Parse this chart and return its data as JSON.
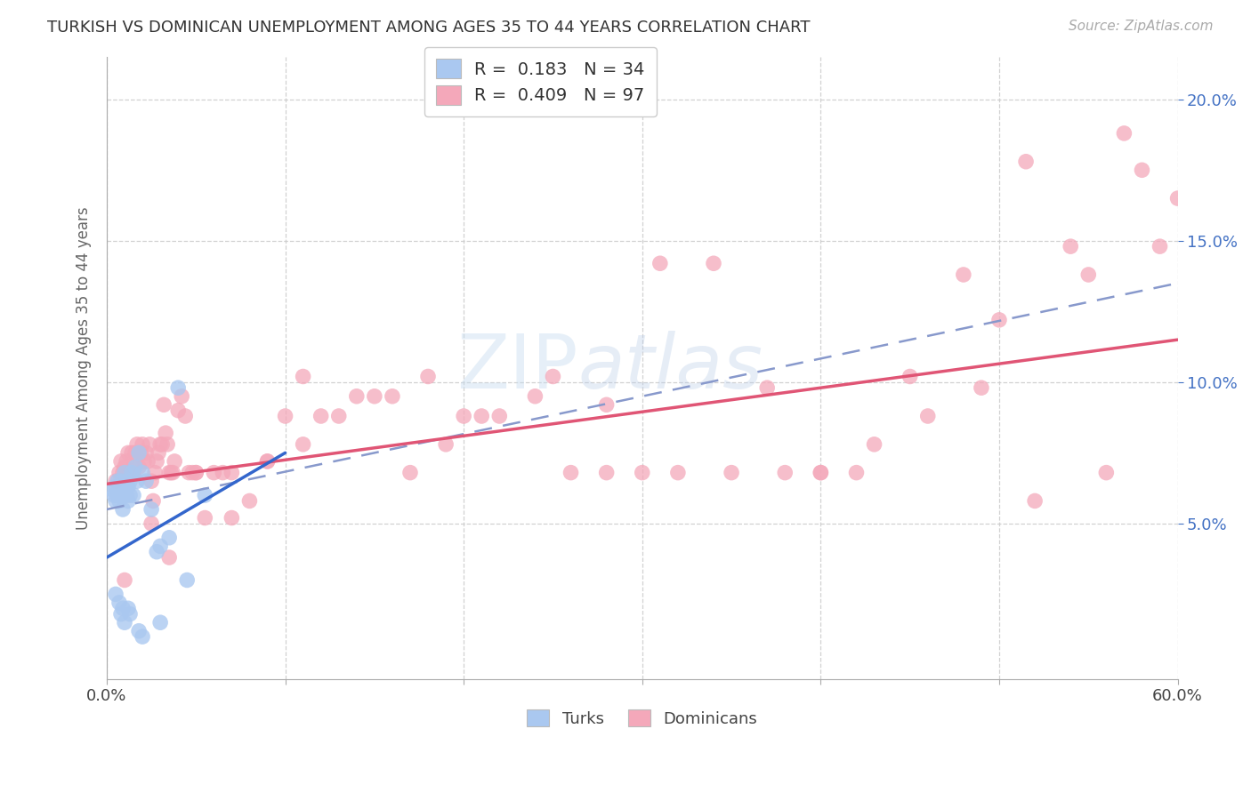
{
  "title": "TURKISH VS DOMINICAN UNEMPLOYMENT AMONG AGES 35 TO 44 YEARS CORRELATION CHART",
  "source": "Source: ZipAtlas.com",
  "ylabel": "Unemployment Among Ages 35 to 44 years",
  "xlim": [
    0.0,
    0.6
  ],
  "ylim": [
    -0.005,
    0.215
  ],
  "turks_R": "0.183",
  "turks_N": "34",
  "dominicans_R": "0.409",
  "dominicans_N": "97",
  "turks_color": "#aac8f0",
  "dominicans_color": "#f4a8ba",
  "turks_line_color": "#3366cc",
  "dominicans_line_color": "#e05575",
  "dashed_line_color": "#8899cc",
  "background_color": "#ffffff",
  "ytick_vals": [
    0.05,
    0.1,
    0.15,
    0.2
  ],
  "ytick_labels": [
    "5.0%",
    "10.0%",
    "15.0%",
    "20.0%"
  ],
  "turks_x": [
    0.003,
    0.004,
    0.005,
    0.005,
    0.006,
    0.006,
    0.007,
    0.007,
    0.008,
    0.008,
    0.009,
    0.009,
    0.01,
    0.01,
    0.01,
    0.011,
    0.011,
    0.012,
    0.012,
    0.013,
    0.013,
    0.014,
    0.015,
    0.016,
    0.017,
    0.018,
    0.02,
    0.022,
    0.025,
    0.028,
    0.03,
    0.035,
    0.04,
    0.055
  ],
  "turks_y": [
    0.062,
    0.06,
    0.058,
    0.063,
    0.06,
    0.065,
    0.058,
    0.062,
    0.06,
    0.065,
    0.055,
    0.063,
    0.06,
    0.062,
    0.068,
    0.06,
    0.065,
    0.058,
    0.063,
    0.06,
    0.065,
    0.068,
    0.06,
    0.07,
    0.065,
    0.075,
    0.068,
    0.065,
    0.055,
    0.04,
    0.042,
    0.045,
    0.098,
    0.06
  ],
  "turks_low_y": [
    0.025,
    0.022,
    0.018,
    0.02,
    0.015,
    0.02,
    0.018,
    0.012,
    0.01,
    0.015,
    0.03
  ],
  "turks_low_x": [
    0.005,
    0.007,
    0.008,
    0.009,
    0.01,
    0.012,
    0.013,
    0.018,
    0.02,
    0.03,
    0.045
  ],
  "dom_x": [
    0.005,
    0.007,
    0.008,
    0.009,
    0.01,
    0.011,
    0.012,
    0.013,
    0.014,
    0.015,
    0.016,
    0.017,
    0.018,
    0.019,
    0.02,
    0.021,
    0.022,
    0.023,
    0.024,
    0.025,
    0.026,
    0.027,
    0.028,
    0.029,
    0.03,
    0.031,
    0.032,
    0.033,
    0.034,
    0.035,
    0.036,
    0.037,
    0.038,
    0.04,
    0.042,
    0.044,
    0.046,
    0.048,
    0.05,
    0.055,
    0.06,
    0.065,
    0.07,
    0.08,
    0.09,
    0.1,
    0.11,
    0.12,
    0.14,
    0.16,
    0.18,
    0.2,
    0.22,
    0.25,
    0.28,
    0.3,
    0.32,
    0.35,
    0.38,
    0.4,
    0.42,
    0.45,
    0.48,
    0.5,
    0.52,
    0.55,
    0.57,
    0.59,
    0.6,
    0.58,
    0.56,
    0.54,
    0.515,
    0.49,
    0.46,
    0.43,
    0.4,
    0.37,
    0.34,
    0.31,
    0.28,
    0.26,
    0.24,
    0.21,
    0.19,
    0.17,
    0.15,
    0.13,
    0.11,
    0.09,
    0.07,
    0.05,
    0.035,
    0.025,
    0.015,
    0.012,
    0.01
  ],
  "dom_y": [
    0.065,
    0.068,
    0.072,
    0.068,
    0.07,
    0.072,
    0.075,
    0.068,
    0.075,
    0.07,
    0.075,
    0.078,
    0.07,
    0.075,
    0.078,
    0.072,
    0.075,
    0.072,
    0.078,
    0.065,
    0.058,
    0.068,
    0.072,
    0.075,
    0.078,
    0.078,
    0.092,
    0.082,
    0.078,
    0.068,
    0.068,
    0.068,
    0.072,
    0.09,
    0.095,
    0.088,
    0.068,
    0.068,
    0.068,
    0.052,
    0.068,
    0.068,
    0.052,
    0.058,
    0.072,
    0.088,
    0.102,
    0.088,
    0.095,
    0.095,
    0.102,
    0.088,
    0.088,
    0.102,
    0.068,
    0.068,
    0.068,
    0.068,
    0.068,
    0.068,
    0.068,
    0.102,
    0.138,
    0.122,
    0.058,
    0.138,
    0.188,
    0.148,
    0.165,
    0.175,
    0.068,
    0.148,
    0.178,
    0.098,
    0.088,
    0.078,
    0.068,
    0.098,
    0.142,
    0.142,
    0.092,
    0.068,
    0.095,
    0.088,
    0.078,
    0.068,
    0.095,
    0.088,
    0.078,
    0.072,
    0.068,
    0.068,
    0.038,
    0.05,
    0.068,
    0.068,
    0.03
  ],
  "pink_line_x0": 0.0,
  "pink_line_x1": 0.6,
  "pink_line_y0": 0.064,
  "pink_line_y1": 0.115,
  "blue_line_x0": 0.0,
  "blue_line_x1": 0.1,
  "blue_line_y0": 0.038,
  "blue_line_y1": 0.075,
  "dash_line_x0": 0.0,
  "dash_line_x1": 0.6,
  "dash_line_y0": 0.055,
  "dash_line_y1": 0.135
}
